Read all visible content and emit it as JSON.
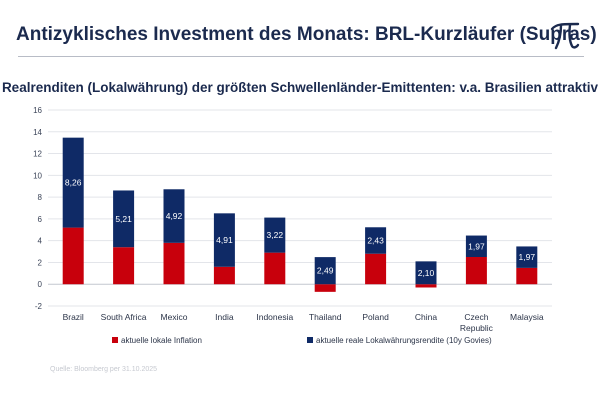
{
  "header": {
    "title": "Antizyklisches Investment des Monats: BRL-Kurzläufer (Supras)",
    "logo_icon": "pi-logo-icon"
  },
  "source": "Quelle: Bloomberg per 31.10.2025",
  "colors": {
    "navy": "#0f2a66",
    "red": "#c8000c",
    "text": "#1b2a4e"
  },
  "chart_data": {
    "type": "bar",
    "stacked": true,
    "title": "Realrenditen (Lokalwährung) der größten Schwellenländer-Emittenten: v.a. Brasilien attraktiv",
    "categories": [
      "Brazil",
      "South Africa",
      "Mexico",
      "India",
      "Indonesia",
      "Thailand",
      "Poland",
      "China",
      "Czech Republic",
      "Malaysia"
    ],
    "ylim": [
      -2,
      16
    ],
    "yticks": [
      -2,
      0,
      2,
      4,
      6,
      8,
      10,
      12,
      14,
      16
    ],
    "grid": true,
    "legend_position": "bottom",
    "series": [
      {
        "name": "aktuelle lokale Inflation",
        "color": "#c8000c",
        "values": [
          5.2,
          3.4,
          3.8,
          1.6,
          2.9,
          -0.7,
          2.8,
          -0.3,
          2.5,
          1.5
        ]
      },
      {
        "name": "aktuelle reale Lokalwährungsrendite (10y Govies)",
        "color": "#0f2a66",
        "values": [
          8.26,
          5.21,
          4.92,
          4.91,
          3.22,
          2.49,
          2.43,
          2.1,
          1.97,
          1.97
        ],
        "labels": [
          "8,26",
          "5,21",
          "4,92",
          "4,91",
          "3,22",
          "2,49",
          "2,43",
          "2,10",
          "1,97",
          "1,97"
        ]
      }
    ]
  }
}
